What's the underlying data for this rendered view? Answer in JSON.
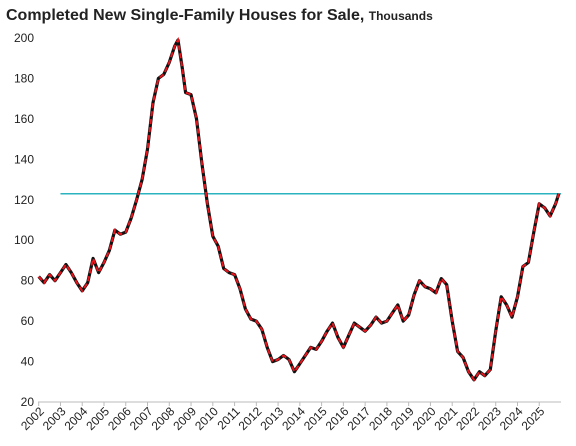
{
  "chart_data": {
    "type": "line",
    "title": "Completed New Single-Family Houses for Sale,",
    "subtitle": "Thousands",
    "x": [
      2002.0,
      2002.25,
      2002.5,
      2002.75,
      2003.0,
      2003.25,
      2003.5,
      2003.75,
      2004.0,
      2004.25,
      2004.5,
      2004.75,
      2005.0,
      2005.25,
      2005.5,
      2005.75,
      2006.0,
      2006.25,
      2006.5,
      2006.75,
      2007.0,
      2007.25,
      2007.5,
      2007.75,
      2008.0,
      2008.25,
      2008.4,
      2008.6,
      2008.75,
      2009.0,
      2009.25,
      2009.5,
      2009.75,
      2010.0,
      2010.25,
      2010.5,
      2010.75,
      2011.0,
      2011.25,
      2011.5,
      2011.75,
      2012.0,
      2012.25,
      2012.5,
      2012.75,
      2013.0,
      2013.25,
      2013.5,
      2013.75,
      2014.0,
      2014.25,
      2014.5,
      2014.75,
      2015.0,
      2015.25,
      2015.5,
      2015.75,
      2016.0,
      2016.25,
      2016.5,
      2016.75,
      2017.0,
      2017.25,
      2017.5,
      2017.75,
      2018.0,
      2018.25,
      2018.5,
      2018.75,
      2019.0,
      2019.25,
      2019.5,
      2019.75,
      2020.0,
      2020.25,
      2020.5,
      2020.75,
      2021.0,
      2021.25,
      2021.5,
      2021.75,
      2022.0,
      2022.25,
      2022.5,
      2022.75,
      2023.0,
      2023.25,
      2023.5,
      2023.75,
      2024.0,
      2024.25,
      2024.5,
      2024.75,
      2025.0,
      2025.25,
      2025.5,
      2025.75,
      2025.9
    ],
    "series": [
      {
        "color": "#e8141c",
        "outline": "#111111",
        "values": [
          82,
          79,
          83,
          80,
          84,
          88,
          84,
          79,
          75,
          79,
          91,
          84,
          89,
          95,
          105,
          103,
          104,
          111,
          120,
          130,
          145,
          168,
          180,
          182,
          188,
          196,
          199,
          185,
          173,
          172,
          160,
          138,
          118,
          102,
          97,
          86,
          84,
          83,
          76,
          66,
          61,
          60,
          56,
          47,
          40,
          41,
          43,
          41,
          35,
          39,
          43,
          47,
          46,
          50,
          55,
          59,
          52,
          47,
          53,
          59,
          57,
          55,
          58,
          62,
          59,
          60,
          64,
          68,
          60,
          63,
          73,
          80,
          77,
          76,
          74,
          81,
          78,
          60,
          45,
          42,
          35,
          31,
          35,
          33,
          36,
          55,
          72,
          68,
          62,
          72,
          87,
          89,
          104,
          118,
          116,
          112,
          118,
          123
        ]
      }
    ],
    "reference_line": {
      "value": 123,
      "color": "#2bb3c0",
      "x_start": 2003
    },
    "xlim": [
      2001.6,
      2026
    ],
    "xticks": [
      2002,
      2003,
      2004,
      2005,
      2006,
      2007,
      2008,
      2009,
      2010,
      2011,
      2012,
      2013,
      2014,
      2015,
      2016,
      2017,
      2018,
      2019,
      2020,
      2021,
      2022,
      2023,
      2024,
      2025
    ],
    "ylim": [
      20,
      200
    ],
    "yticks": [
      20,
      40,
      60,
      80,
      100,
      120,
      140,
      160,
      180,
      200
    ]
  }
}
